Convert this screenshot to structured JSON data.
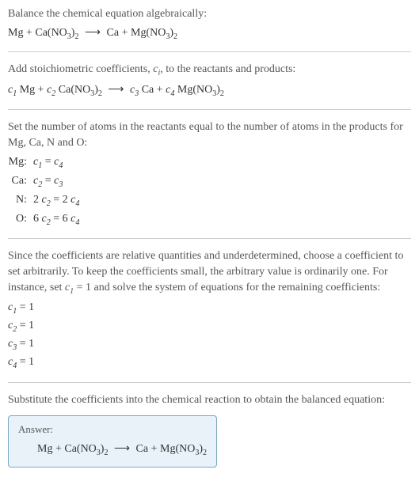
{
  "section1": {
    "prompt": "Balance the chemical equation algebraically:",
    "lhs1": "Mg",
    "plus": "+",
    "lhs2": "Ca(NO",
    "lhs2_sub1": "3",
    "lhs2_close": ")",
    "lhs2_sub2": "2",
    "arrow": "⟶",
    "rhs1": "Ca",
    "rhs2": "Mg(NO",
    "rhs2_sub1": "3",
    "rhs2_close": ")",
    "rhs2_sub2": "2"
  },
  "section2": {
    "prompt_a": "Add stoichiometric coefficients, ",
    "prompt_ci": "c",
    "prompt_ci_sub": "i",
    "prompt_b": ", to the reactants and products:",
    "c1": "c",
    "c1s": "1",
    "t1": " Mg",
    "plus": "+",
    "c2": "c",
    "c2s": "2",
    "t2": " Ca(NO",
    "t2_sub1": "3",
    "t2_close": ")",
    "t2_sub2": "2",
    "arrow": "⟶",
    "c3": "c",
    "c3s": "3",
    "t3": " Ca",
    "c4": "c",
    "c4s": "4",
    "t4": " Mg(NO",
    "t4_sub1": "3",
    "t4_close": ")",
    "t4_sub2": "2"
  },
  "section3": {
    "prompt": "Set the number of atoms in the reactants equal to the number of atoms in the products for Mg, Ca, N and O:",
    "rows": [
      {
        "el": "Mg:",
        "lhs": "c",
        "lhs_s": "1",
        "eq": " = ",
        "rhs": "c",
        "rhs_s": "4"
      },
      {
        "el": "Ca:",
        "lhs": "c",
        "lhs_s": "2",
        "eq": " = ",
        "rhs": "c",
        "rhs_s": "3"
      }
    ],
    "row_n": {
      "el": "N:",
      "l_coef": "2 ",
      "l_c": "c",
      "l_s": "2",
      "eq": " = ",
      "r_coef": "2 ",
      "r_c": "c",
      "r_s": "4"
    },
    "row_o": {
      "el": "O:",
      "l_coef": "6 ",
      "l_c": "c",
      "l_s": "2",
      "eq": " = ",
      "r_coef": "6 ",
      "r_c": "c",
      "r_s": "4"
    }
  },
  "section4": {
    "prompt_a": "Since the coefficients are relative quantities and underdetermined, choose a coefficient to set arbitrarily. To keep the coefficients small, the arbitrary value is ordinarily one. For instance, set ",
    "prompt_c": "c",
    "prompt_cs": "1",
    "prompt_b": " = 1 and solve the system of equations for the remaining coefficients:",
    "coefs": [
      {
        "c": "c",
        "s": "1",
        "v": " = 1"
      },
      {
        "c": "c",
        "s": "2",
        "v": " = 1"
      },
      {
        "c": "c",
        "s": "3",
        "v": " = 1"
      },
      {
        "c": "c",
        "s": "4",
        "v": " = 1"
      }
    ]
  },
  "section5": {
    "prompt": "Substitute the coefficients into the chemical reaction to obtain the balanced equation:",
    "answer_label": "Answer:",
    "lhs1": "Mg",
    "plus": "+",
    "lhs2": "Ca(NO",
    "lhs2_sub1": "3",
    "lhs2_close": ")",
    "lhs2_sub2": "2",
    "arrow": "⟶",
    "rhs1": "Ca",
    "rhs2": "Mg(NO",
    "rhs2_sub1": "3",
    "rhs2_close": ")",
    "rhs2_sub2": "2"
  },
  "colors": {
    "text": "#333333",
    "prompt": "#555555",
    "divider": "#cccccc",
    "answer_bg": "#e8f2f8",
    "answer_border": "#7aa8c4"
  }
}
